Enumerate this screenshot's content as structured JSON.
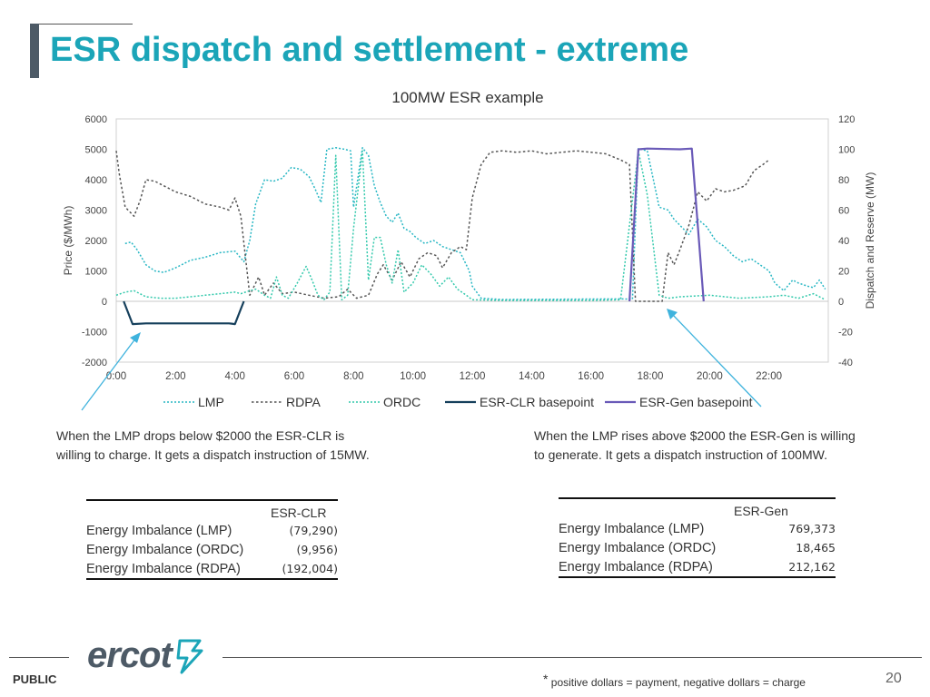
{
  "page": {
    "title": "ESR dispatch and settlement - extreme",
    "page_number": "20",
    "public_label": "PUBLIC",
    "footnote": "positive dollars = payment, negative dollars = charge",
    "footnote_star": "*",
    "logo_text": "ercot"
  },
  "annotations": {
    "left": [
      "When the LMP drops below $2000 the ESR-CLR is",
      "willing to charge. It gets a dispatch instruction of 15MW."
    ],
    "right": [
      "When the LMP rises above $2000 the ESR-Gen is willing",
      "to generate. It gets a dispatch instruction of 100MW."
    ]
  },
  "tables": {
    "clr": {
      "header": "ESR-CLR",
      "rows": [
        {
          "label": "Energy Imbalance (LMP)",
          "value": "(79,290)"
        },
        {
          "label": "Energy Imbalance (ORDC)",
          "value": "(9,956)"
        },
        {
          "label": "Energy Imbalance (RDPA)",
          "value": "(192,004)"
        }
      ]
    },
    "gen": {
      "header": "ESR-Gen",
      "rows": [
        {
          "label": "Energy Imbalance (LMP)",
          "value": "769,373"
        },
        {
          "label": "Energy Imbalance (ORDC)",
          "value": "18,465"
        },
        {
          "label": "Energy Imbalance (RDPA)",
          "value": "212,162"
        }
      ]
    }
  },
  "colors": {
    "title": "#1ba5b8",
    "lmp": "#28b7c4",
    "rdpa": "#555555",
    "ordc": "#33c9ac",
    "clr": "#16405c",
    "gen": "#6a5ab8",
    "arrow": "#3fb3dd"
  },
  "chart_data": {
    "type": "line",
    "title": "100MW ESR example",
    "ylabel": "Price ($/MWh)",
    "y2label": "Dispatch and Reserve (MW)",
    "xlim": [
      0,
      24
    ],
    "ylim": [
      -2000,
      6000
    ],
    "y2lim": [
      -40,
      120
    ],
    "x_ticks": [
      {
        "v": 0,
        "label": "0:00"
      },
      {
        "v": 2,
        "label": "2:00"
      },
      {
        "v": 4,
        "label": "4:00"
      },
      {
        "v": 6,
        "label": "6:00"
      },
      {
        "v": 8,
        "label": "8:00"
      },
      {
        "v": 10,
        "label": "10:00"
      },
      {
        "v": 12,
        "label": "12:00"
      },
      {
        "v": 14,
        "label": "14:00"
      },
      {
        "v": 16,
        "label": "16:00"
      },
      {
        "v": 18,
        "label": "18:00"
      },
      {
        "v": 20,
        "label": "20:00"
      },
      {
        "v": 22,
        "label": "22:00"
      }
    ],
    "y_ticks": [
      6000,
      5000,
      4000,
      3000,
      2000,
      1000,
      0,
      -1000,
      -2000
    ],
    "y2_ticks": [
      120,
      100,
      80,
      60,
      40,
      20,
      0,
      -20,
      -40
    ],
    "series": [
      {
        "name": "LMP",
        "key": "lmp",
        "axis": "left",
        "style": "dotted",
        "points": [
          [
            0.3,
            1900
          ],
          [
            0.5,
            1950
          ],
          [
            0.7,
            1700
          ],
          [
            1.0,
            1200
          ],
          [
            1.3,
            1000
          ],
          [
            1.6,
            950
          ],
          [
            2.0,
            1100
          ],
          [
            2.5,
            1350
          ],
          [
            3.0,
            1450
          ],
          [
            3.5,
            1600
          ],
          [
            4.0,
            1650
          ],
          [
            4.3,
            1300
          ],
          [
            4.5,
            2000
          ],
          [
            4.7,
            3200
          ],
          [
            5.0,
            4000
          ],
          [
            5.3,
            3950
          ],
          [
            5.6,
            4050
          ],
          [
            5.9,
            4400
          ],
          [
            6.2,
            4350
          ],
          [
            6.5,
            4100
          ],
          [
            6.7,
            3700
          ],
          [
            6.9,
            3250
          ],
          [
            7.1,
            5000
          ],
          [
            7.4,
            5050
          ],
          [
            7.7,
            5000
          ],
          [
            7.9,
            4950
          ],
          [
            8.0,
            3100
          ],
          [
            8.3,
            5050
          ],
          [
            8.5,
            4800
          ],
          [
            8.7,
            3800
          ],
          [
            8.9,
            3250
          ],
          [
            9.1,
            2800
          ],
          [
            9.3,
            2600
          ],
          [
            9.5,
            2900
          ],
          [
            9.7,
            2400
          ],
          [
            9.9,
            2300
          ],
          [
            10.1,
            2100
          ],
          [
            10.4,
            1900
          ],
          [
            10.7,
            2000
          ],
          [
            11.0,
            1800
          ],
          [
            11.3,
            1700
          ],
          [
            11.6,
            1600
          ],
          [
            11.9,
            1000
          ],
          [
            12.0,
            500
          ],
          [
            12.3,
            100
          ],
          [
            13,
            60
          ],
          [
            15,
            70
          ],
          [
            17.0,
            80
          ],
          [
            17.4,
            70
          ],
          [
            17.6,
            5020
          ],
          [
            17.9,
            4950
          ],
          [
            18.3,
            3100
          ],
          [
            18.6,
            3000
          ],
          [
            18.8,
            2700
          ],
          [
            19.0,
            2500
          ],
          [
            19.3,
            2200
          ],
          [
            19.6,
            2700
          ],
          [
            19.9,
            2450
          ],
          [
            20.2,
            2000
          ],
          [
            20.5,
            1800
          ],
          [
            20.8,
            1500
          ],
          [
            21.1,
            1300
          ],
          [
            21.4,
            1400
          ],
          [
            21.7,
            1200
          ],
          [
            22.0,
            1000
          ],
          [
            22.2,
            600
          ],
          [
            22.5,
            350
          ],
          [
            22.8,
            700
          ],
          [
            23.0,
            600
          ],
          [
            23.3,
            500
          ],
          [
            23.5,
            450
          ],
          [
            23.7,
            700
          ],
          [
            23.9,
            400
          ]
        ]
      },
      {
        "name": "RDPA",
        "key": "rdpa",
        "axis": "left",
        "style": "dashed",
        "points": [
          [
            0.0,
            4950
          ],
          [
            0.1,
            4200
          ],
          [
            0.3,
            3100
          ],
          [
            0.6,
            2800
          ],
          [
            0.8,
            3300
          ],
          [
            1.0,
            4000
          ],
          [
            1.3,
            3950
          ],
          [
            1.6,
            3800
          ],
          [
            2.0,
            3600
          ],
          [
            2.5,
            3450
          ],
          [
            3.0,
            3200
          ],
          [
            3.5,
            3100
          ],
          [
            3.8,
            3000
          ],
          [
            4.0,
            3400
          ],
          [
            4.2,
            2800
          ],
          [
            4.5,
            200
          ],
          [
            4.8,
            800
          ],
          [
            5.0,
            200
          ],
          [
            5.3,
            600
          ],
          [
            5.6,
            250
          ],
          [
            6.0,
            300
          ],
          [
            6.5,
            200
          ],
          [
            7.0,
            100
          ],
          [
            7.5,
            150
          ],
          [
            7.8,
            400
          ],
          [
            8.1,
            100
          ],
          [
            8.5,
            200
          ],
          [
            8.8,
            900
          ],
          [
            9.0,
            1200
          ],
          [
            9.3,
            700
          ],
          [
            9.6,
            1300
          ],
          [
            9.9,
            800
          ],
          [
            10.2,
            1400
          ],
          [
            10.5,
            1600
          ],
          [
            10.8,
            1500
          ],
          [
            11.0,
            1100
          ],
          [
            11.3,
            1600
          ],
          [
            11.6,
            1800
          ],
          [
            11.8,
            1700
          ],
          [
            12.0,
            3400
          ],
          [
            12.3,
            4500
          ],
          [
            12.6,
            4900
          ],
          [
            13.0,
            4950
          ],
          [
            13.5,
            4900
          ],
          [
            14.0,
            4950
          ],
          [
            14.5,
            4850
          ],
          [
            15.0,
            4900
          ],
          [
            15.5,
            4950
          ],
          [
            16.0,
            4900
          ],
          [
            16.5,
            4850
          ],
          [
            17.0,
            4650
          ],
          [
            17.3,
            4500
          ],
          [
            17.5,
            0
          ],
          [
            18.0,
            0
          ],
          [
            18.4,
            0
          ],
          [
            18.6,
            1600
          ],
          [
            18.8,
            1200
          ],
          [
            19.0,
            1700
          ],
          [
            19.3,
            2500
          ],
          [
            19.6,
            3600
          ],
          [
            19.9,
            3300
          ],
          [
            20.2,
            3700
          ],
          [
            20.5,
            3600
          ],
          [
            20.8,
            3650
          ],
          [
            21.2,
            3800
          ],
          [
            21.5,
            4300
          ],
          [
            21.8,
            4500
          ],
          [
            22.0,
            4650
          ]
        ]
      },
      {
        "name": "ORDC",
        "key": "ordc",
        "axis": "left",
        "style": "dotted",
        "points": [
          [
            0.0,
            200
          ],
          [
            0.3,
            300
          ],
          [
            0.6,
            350
          ],
          [
            1.0,
            150
          ],
          [
            1.5,
            100
          ],
          [
            2.0,
            100
          ],
          [
            2.5,
            150
          ],
          [
            3.0,
            200
          ],
          [
            3.5,
            250
          ],
          [
            4.0,
            300
          ],
          [
            4.2,
            250
          ],
          [
            4.5,
            350
          ],
          [
            4.7,
            400
          ],
          [
            5.0,
            200
          ],
          [
            5.2,
            100
          ],
          [
            5.4,
            800
          ],
          [
            5.6,
            200
          ],
          [
            5.8,
            100
          ],
          [
            6.1,
            600
          ],
          [
            6.4,
            1150
          ],
          [
            6.6,
            700
          ],
          [
            6.8,
            200
          ],
          [
            7.0,
            50
          ],
          [
            7.2,
            300
          ],
          [
            7.4,
            4800
          ],
          [
            7.6,
            50
          ],
          [
            7.8,
            200
          ],
          [
            8.0,
            2400
          ],
          [
            8.3,
            4950
          ],
          [
            8.5,
            700
          ],
          [
            8.7,
            2100
          ],
          [
            8.9,
            2100
          ],
          [
            9.1,
            1200
          ],
          [
            9.3,
            600
          ],
          [
            9.5,
            1700
          ],
          [
            9.7,
            300
          ],
          [
            10.0,
            600
          ],
          [
            10.3,
            1200
          ],
          [
            10.6,
            900
          ],
          [
            10.9,
            500
          ],
          [
            11.2,
            800
          ],
          [
            11.5,
            400
          ],
          [
            11.8,
            200
          ],
          [
            12.0,
            50
          ],
          [
            13,
            30
          ],
          [
            16,
            30
          ],
          [
            17.0,
            50
          ],
          [
            17.6,
            4950
          ],
          [
            17.9,
            3500
          ],
          [
            18.3,
            200
          ],
          [
            18.6,
            100
          ],
          [
            19.0,
            150
          ],
          [
            20.0,
            200
          ],
          [
            21.0,
            100
          ],
          [
            22.0,
            150
          ],
          [
            22.5,
            200
          ],
          [
            23.0,
            100
          ],
          [
            23.5,
            250
          ],
          [
            23.9,
            50
          ]
        ]
      },
      {
        "name": "ESR-CLR basepoint",
        "key": "clr",
        "axis": "right",
        "style": "solid",
        "points": [
          [
            0.25,
            0
          ],
          [
            0.55,
            -15
          ],
          [
            1.0,
            -14.5
          ],
          [
            3.8,
            -14.5
          ],
          [
            4.0,
            -15
          ],
          [
            4.2,
            -5
          ],
          [
            4.3,
            0
          ]
        ]
      },
      {
        "name": "ESR-Gen basepoint",
        "key": "gen",
        "axis": "right",
        "style": "solid",
        "points": [
          [
            17.3,
            0
          ],
          [
            17.6,
            100
          ],
          [
            17.9,
            100.5
          ],
          [
            19.0,
            100
          ],
          [
            19.4,
            100.5
          ],
          [
            19.6,
            50
          ],
          [
            19.8,
            0
          ]
        ]
      }
    ],
    "legend": [
      {
        "label": "LMP",
        "key": "lmp",
        "style": "dotted"
      },
      {
        "label": "RDPA",
        "key": "rdpa",
        "style": "dashed"
      },
      {
        "label": "ORDC",
        "key": "ordc",
        "style": "dotted"
      },
      {
        "label": "ESR-CLR basepoint",
        "key": "clr",
        "style": "solid"
      },
      {
        "label": "ESR-Gen basepoint",
        "key": "gen",
        "style": "solid"
      }
    ],
    "legend_position": "bottom-center"
  }
}
